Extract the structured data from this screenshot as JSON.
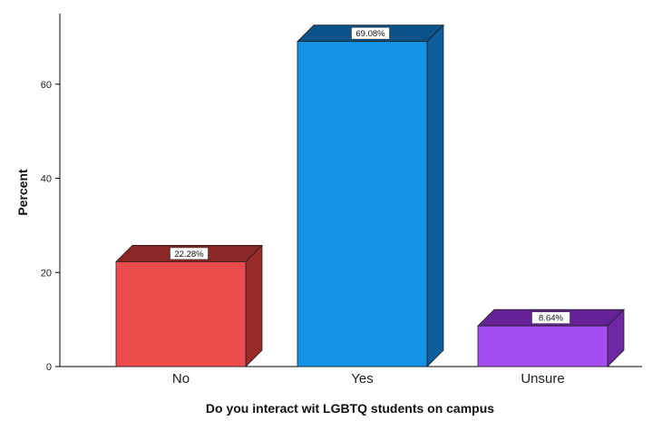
{
  "chart_data": {
    "type": "bar",
    "categories": [
      "No",
      "Yes",
      "Unsure"
    ],
    "values": [
      22.28,
      69.08,
      8.64
    ],
    "data_labels": [
      "22.28%",
      "69.08%",
      "8.64%"
    ],
    "xlabel": "Do you interact wit LGBTQ students on campus",
    "ylabel": "Percent",
    "ylim": [
      0,
      75
    ],
    "yticks": [
      0,
      20,
      40,
      60
    ],
    "grid": false,
    "style": "3d-bars",
    "colors": {
      "bar_front": [
        "#ee4c4c",
        "#1593e6",
        "#a64df2"
      ],
      "bar_top": [
        "#8c2626",
        "#0b5289",
        "#642296"
      ],
      "bar_side": [
        "#9a2a2a",
        "#0e5e9c",
        "#6f27a6"
      ]
    }
  }
}
